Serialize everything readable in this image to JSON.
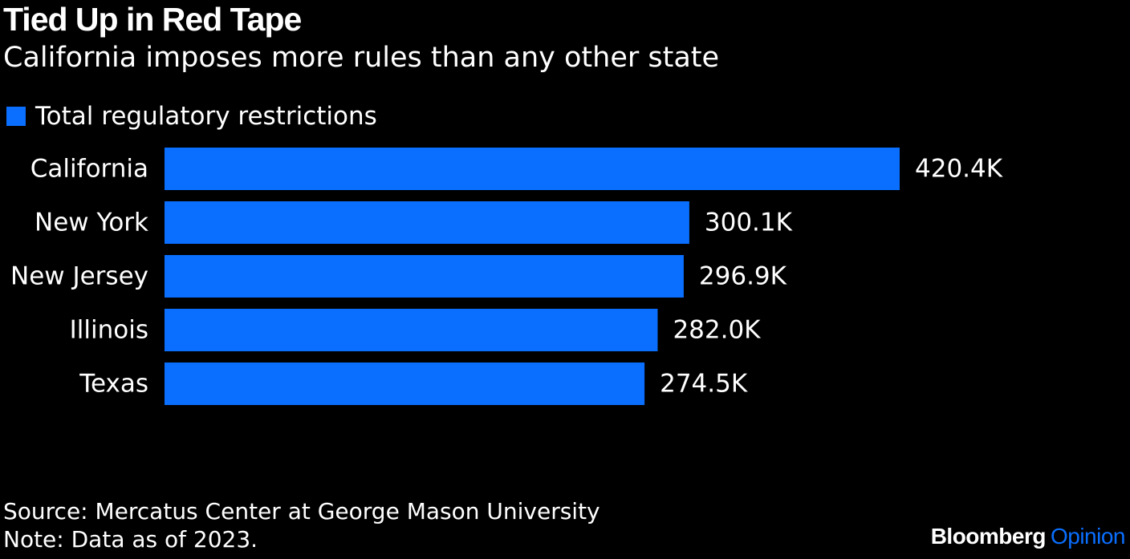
{
  "title": "Tied Up in Red Tape",
  "subtitle": "California imposes more rules than any other state",
  "legend": {
    "label": "Total regulatory restrictions",
    "color": "#0a6fff"
  },
  "chart_data": {
    "type": "bar",
    "orientation": "horizontal",
    "categories": [
      "California",
      "New York",
      "New Jersey",
      "Illinois",
      "Texas"
    ],
    "series": [
      {
        "name": "Total regulatory restrictions",
        "values": [
          420400,
          300100,
          296900,
          282000,
          274500
        ]
      }
    ],
    "value_labels": [
      "420.4K",
      "300.1K",
      "296.9K",
      "282.0K",
      "274.5K"
    ],
    "xlabel": "",
    "ylabel": "",
    "grid": false,
    "legend_position": "top-left",
    "bar_color": "#0a6fff"
  },
  "footer": {
    "source": "Source: Mercatus Center at George Mason University",
    "note": "Note: Data as of 2023."
  },
  "brand": {
    "main": "Bloomberg",
    "sub": "Opinion",
    "sub_color": "#0a6fff"
  }
}
